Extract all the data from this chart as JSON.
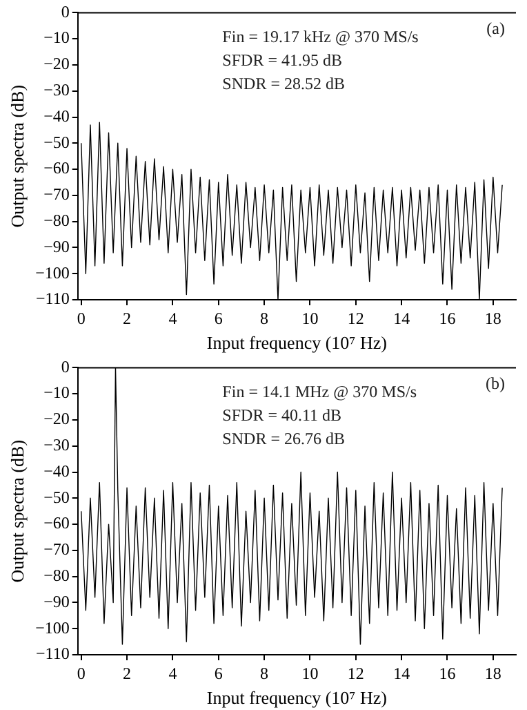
{
  "chart_data": [
    {
      "type": "line",
      "xlabel": "Input frequency (10⁷ Hz)",
      "ylabel": "Output spectra (dB)",
      "annotations": [
        "(a)",
        "Fin = 19.17 kHz @ 370 MS/s",
        "SFDR = 41.95 dB",
        "SNDR = 28.52 dB"
      ],
      "xlim": [
        -0.15,
        19
      ],
      "xticks": [
        0,
        2,
        4,
        6,
        8,
        10,
        12,
        14,
        16,
        18
      ],
      "ylim": [
        -110,
        0
      ],
      "yticks": [
        -110,
        -100,
        -90,
        -80,
        -70,
        -60,
        -50,
        -40,
        -30,
        -20,
        -10,
        0
      ],
      "grid": false,
      "legend": false,
      "marker": "none",
      "line_style": "solid",
      "series": [
        {
          "color": "#000000",
          "x": [
            0,
            0.2,
            0.4,
            0.6,
            0.8,
            1,
            1.2,
            1.4,
            1.6,
            1.8,
            2,
            2.2,
            2.4,
            2.6,
            2.8,
            3,
            3.2,
            3.4,
            3.6,
            3.8,
            4,
            4.2,
            4.4,
            4.6,
            4.8,
            5,
            5.2,
            5.4,
            5.6,
            5.8,
            6,
            6.2,
            6.4,
            6.6,
            6.8,
            7,
            7.2,
            7.4,
            7.6,
            7.8,
            8,
            8.2,
            8.4,
            8.6,
            8.8,
            9,
            9.2,
            9.4,
            9.6,
            9.8,
            10,
            10.2,
            10.4,
            10.6,
            10.8,
            11,
            11.2,
            11.4,
            11.6,
            11.8,
            12,
            12.2,
            12.4,
            12.6,
            12.8,
            13,
            13.2,
            13.4,
            13.6,
            13.8,
            14,
            14.2,
            14.4,
            14.6,
            14.8,
            15,
            15.2,
            15.4,
            15.6,
            15.8,
            16,
            16.2,
            16.4,
            16.6,
            16.8,
            17,
            17.2,
            17.4,
            17.6,
            17.8,
            18,
            18.2,
            18.4
          ],
          "values": [
            -50,
            -100,
            -43,
            -97,
            -42,
            -96,
            -46,
            -92,
            -50,
            -97,
            -52,
            -90,
            -55,
            -88,
            -57,
            -89,
            -56,
            -87,
            -59,
            -92,
            -60,
            -88,
            -62,
            -108,
            -60,
            -92,
            -63,
            -95,
            -64,
            -104,
            -65,
            -97,
            -62,
            -93,
            -66,
            -96,
            -65,
            -90,
            -67,
            -95,
            -66,
            -92,
            -68,
            -110,
            -67,
            -95,
            -66,
            -103,
            -68,
            -92,
            -67,
            -97,
            -66,
            -93,
            -68,
            -96,
            -67,
            -90,
            -68,
            -97,
            -66,
            -92,
            -69,
            -103,
            -67,
            -95,
            -68,
            -92,
            -67,
            -97,
            -68,
            -94,
            -67,
            -91,
            -68,
            -96,
            -67,
            -92,
            -66,
            -104,
            -68,
            -106,
            -66,
            -96,
            -67,
            -94,
            -65,
            -110,
            -64,
            -98,
            -63,
            -92,
            -66
          ]
        }
      ]
    },
    {
      "type": "line",
      "xlabel": "Input frequency (10⁷ Hz)",
      "ylabel": "Output spectra (dB)",
      "annotations": [
        "(b)",
        "Fin = 14.1 MHz @ 370 MS/s",
        "SFDR = 40.11 dB",
        "SNDR = 26.76 dB"
      ],
      "xlim": [
        -0.15,
        19
      ],
      "xticks": [
        0,
        2,
        4,
        6,
        8,
        10,
        12,
        14,
        16,
        18
      ],
      "ylim": [
        -110,
        0
      ],
      "yticks": [
        -110,
        -100,
        -90,
        -80,
        -70,
        -60,
        -50,
        -40,
        -30,
        -20,
        -10,
        0
      ],
      "grid": false,
      "legend": false,
      "marker": "none",
      "line_style": "solid",
      "series": [
        {
          "color": "#000000",
          "x": [
            0,
            0.2,
            0.4,
            0.6,
            0.8,
            1,
            1.2,
            1.4,
            1.5,
            1.6,
            1.8,
            2,
            2.2,
            2.4,
            2.6,
            2.8,
            3,
            3.2,
            3.4,
            3.6,
            3.8,
            4,
            4.2,
            4.4,
            4.6,
            4.8,
            5,
            5.2,
            5.4,
            5.6,
            5.8,
            6,
            6.2,
            6.4,
            6.6,
            6.8,
            7,
            7.2,
            7.4,
            7.6,
            7.8,
            8,
            8.2,
            8.4,
            8.6,
            8.8,
            9,
            9.2,
            9.4,
            9.6,
            9.8,
            10,
            10.2,
            10.4,
            10.6,
            10.8,
            11,
            11.2,
            11.4,
            11.6,
            11.8,
            12,
            12.2,
            12.4,
            12.6,
            12.8,
            13,
            13.2,
            13.4,
            13.6,
            13.8,
            14,
            14.2,
            14.4,
            14.6,
            14.8,
            15,
            15.2,
            15.4,
            15.6,
            15.8,
            16,
            16.2,
            16.4,
            16.6,
            16.8,
            17,
            17.2,
            17.4,
            17.6,
            17.8,
            18,
            18.2,
            18.4
          ],
          "values": [
            -55,
            -93,
            -50,
            -88,
            -44,
            -98,
            -60,
            -90,
            0,
            -47,
            -106,
            -46,
            -95,
            -53,
            -92,
            -46,
            -88,
            -50,
            -96,
            -47,
            -100,
            -44,
            -90,
            -52,
            -105,
            -44,
            -93,
            -48,
            -88,
            -45,
            -98,
            -53,
            -95,
            -49,
            -92,
            -44,
            -99,
            -55,
            -90,
            -47,
            -97,
            -50,
            -93,
            -45,
            -89,
            -48,
            -96,
            -52,
            -91,
            -40,
            -95,
            -48,
            -88,
            -55,
            -97,
            -50,
            -92,
            -40,
            -90,
            -46,
            -95,
            -47,
            -106,
            -53,
            -98,
            -44,
            -92,
            -48,
            -95,
            -40,
            -93,
            -50,
            -90,
            -44,
            -97,
            -47,
            -100,
            -52,
            -95,
            -45,
            -104,
            -49,
            -92,
            -54,
            -98,
            -46,
            -96,
            -49,
            -102,
            -44,
            -93,
            -52,
            -95,
            -46
          ]
        }
      ]
    }
  ]
}
